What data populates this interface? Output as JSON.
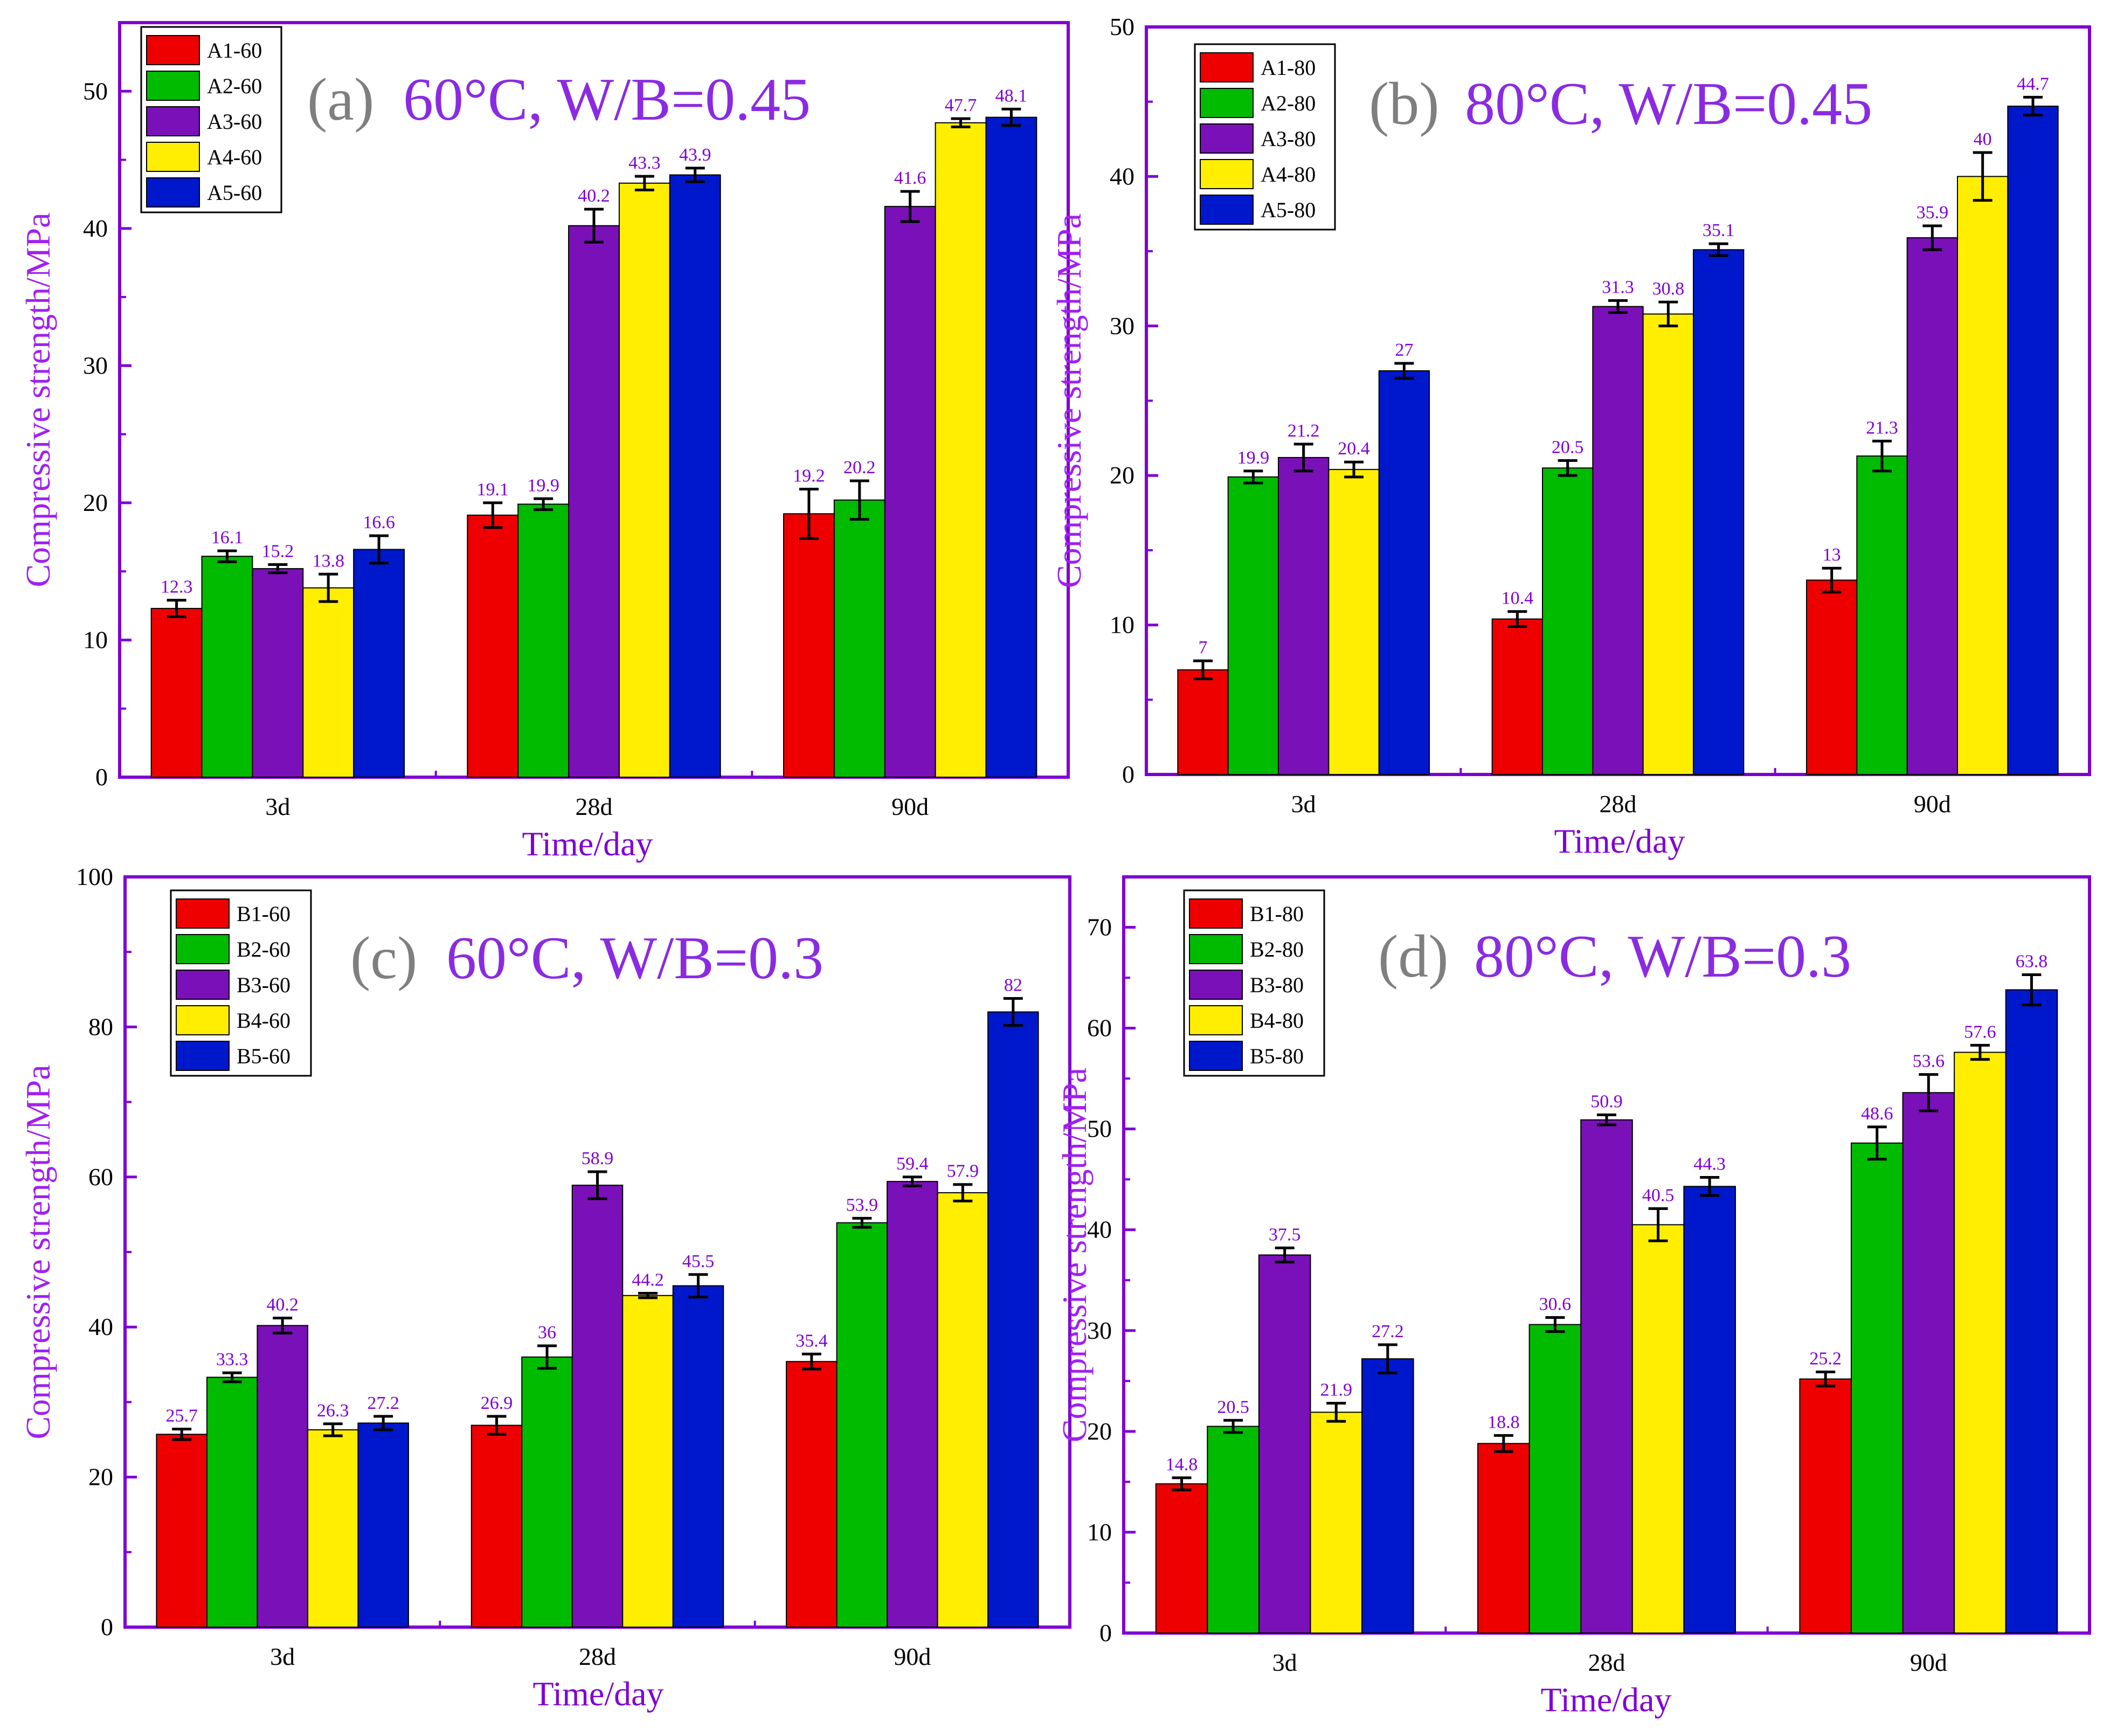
{
  "colors": {
    "frame": "#7f00d4",
    "ylabel": "#a020f0",
    "xlabel": "#7f00d4",
    "bar_label": "#7f00d4",
    "panel_title": "#8a2be2",
    "panel_letter": "#7f7f7f",
    "series": [
      "#ee0000",
      "#00bb00",
      "#7a10b8",
      "#ffee00",
      "#0018cc"
    ]
  },
  "chart_data": [
    {
      "id": "a",
      "type": "bar",
      "title_letter": "(a)",
      "title_text": "60°C, W/B=0.45",
      "categories": [
        "3d",
        "28d",
        "90d"
      ],
      "xlabel": "Time/day",
      "ylabel": "Compressive strength/MPa",
      "ylim": [
        0,
        55
      ],
      "yticks": [
        0,
        10,
        20,
        30,
        40,
        50
      ],
      "legend_position": "top-left",
      "series": [
        {
          "name": "A1-60",
          "values": [
            12.3,
            19.1,
            19.2
          ],
          "errors": [
            0.6,
            0.9,
            1.8
          ]
        },
        {
          "name": "A2-60",
          "values": [
            16.1,
            19.9,
            20.2
          ],
          "errors": [
            0.4,
            0.4,
            1.4
          ]
        },
        {
          "name": "A3-60",
          "values": [
            15.2,
            40.2,
            41.6
          ],
          "errors": [
            0.3,
            1.2,
            1.1
          ]
        },
        {
          "name": "A4-60",
          "values": [
            13.8,
            43.3,
            47.7
          ],
          "errors": [
            1.0,
            0.5,
            0.3
          ]
        },
        {
          "name": "A5-60",
          "values": [
            16.6,
            43.9,
            48.1
          ],
          "errors": [
            1.0,
            0.5,
            0.6
          ]
        }
      ],
      "value_labels": [
        [
          "12.3",
          "19.1",
          "19.2"
        ],
        [
          "16.1",
          "19.9",
          "20.2"
        ],
        [
          "15.2",
          "40.2",
          "41.6"
        ],
        [
          "13.8",
          "43.3",
          "47.7"
        ],
        [
          "16.6",
          "43.9",
          "48.1"
        ]
      ]
    },
    {
      "id": "b",
      "type": "bar",
      "title_letter": "(b)",
      "title_text": "80°C, W/B=0.45",
      "categories": [
        "3d",
        "28d",
        "90d"
      ],
      "xlabel": "Time/day",
      "ylabel": "Compressive strength/MPa",
      "ylim": [
        0,
        50
      ],
      "yticks": [
        0,
        10,
        20,
        30,
        40,
        50
      ],
      "legend_position": "top-left",
      "series": [
        {
          "name": "A1-80",
          "values": [
            7,
            10.4,
            13
          ],
          "errors": [
            0.6,
            0.5,
            0.8
          ]
        },
        {
          "name": "A2-80",
          "values": [
            19.9,
            20.5,
            21.3
          ],
          "errors": [
            0.4,
            0.5,
            1.0
          ]
        },
        {
          "name": "A3-80",
          "values": [
            21.2,
            31.3,
            35.9
          ],
          "errors": [
            0.9,
            0.4,
            0.8
          ]
        },
        {
          "name": "A4-80",
          "values": [
            20.4,
            30.8,
            40
          ],
          "errors": [
            0.5,
            0.8,
            1.6
          ]
        },
        {
          "name": "A5-80",
          "values": [
            27,
            35.1,
            44.7
          ],
          "errors": [
            0.5,
            0.4,
            0.6
          ]
        }
      ],
      "value_labels": [
        [
          "7",
          "10.4",
          "13"
        ],
        [
          "19.9",
          "20.5",
          "21.3"
        ],
        [
          "21.2",
          "31.3",
          "35.9"
        ],
        [
          "20.4",
          "30.8",
          "40"
        ],
        [
          "27",
          "35.1",
          "44.7"
        ]
      ]
    },
    {
      "id": "c",
      "type": "bar",
      "title_letter": "(c)",
      "title_text": "60°C, W/B=0.3",
      "categories": [
        "3d",
        "28d",
        "90d"
      ],
      "xlabel": "Time/day",
      "ylabel": "Compressive strength/MPa",
      "ylim": [
        0,
        100
      ],
      "yticks": [
        0,
        20,
        40,
        60,
        80,
        100
      ],
      "legend_position": "top-left",
      "series": [
        {
          "name": "B1-60",
          "values": [
            25.7,
            26.9,
            35.4
          ],
          "errors": [
            0.7,
            1.2,
            1.0
          ]
        },
        {
          "name": "B2-60",
          "values": [
            33.3,
            36,
            53.9
          ],
          "errors": [
            0.6,
            1.5,
            0.6
          ]
        },
        {
          "name": "B3-60",
          "values": [
            40.2,
            58.9,
            59.4
          ],
          "errors": [
            1.0,
            1.8,
            0.6
          ]
        },
        {
          "name": "B4-60",
          "values": [
            26.3,
            44.2,
            57.9
          ],
          "errors": [
            0.8,
            0.3,
            1.1
          ]
        },
        {
          "name": "B5-60",
          "values": [
            27.2,
            45.5,
            82
          ],
          "errors": [
            0.9,
            1.5,
            1.8
          ]
        }
      ],
      "value_labels": [
        [
          "25.7",
          "26.9",
          "35.4"
        ],
        [
          "33.3",
          "36",
          "53.9"
        ],
        [
          "40.2",
          "58.9",
          "59.4"
        ],
        [
          "26.3",
          "44.2",
          "57.9"
        ],
        [
          "27.2",
          "45.5",
          "82"
        ]
      ]
    },
    {
      "id": "d",
      "type": "bar",
      "title_letter": "(d)",
      "title_text": "80°C, W/B=0.3",
      "categories": [
        "3d",
        "28d",
        "90d"
      ],
      "xlabel": "Time/day",
      "ylabel": "Compressive strength/MPa",
      "ylim": [
        0,
        75
      ],
      "yticks": [
        0,
        10,
        20,
        30,
        40,
        50,
        60,
        70
      ],
      "legend_position": "top-left",
      "series": [
        {
          "name": "B1-80",
          "values": [
            14.8,
            18.8,
            25.2
          ],
          "errors": [
            0.6,
            0.8,
            0.7
          ]
        },
        {
          "name": "B2-80",
          "values": [
            20.5,
            30.6,
            48.6
          ],
          "errors": [
            0.6,
            0.7,
            1.6
          ]
        },
        {
          "name": "B3-80",
          "values": [
            37.5,
            50.9,
            53.6
          ],
          "errors": [
            0.7,
            0.5,
            1.8
          ]
        },
        {
          "name": "B4-80",
          "values": [
            21.9,
            40.5,
            57.6
          ],
          "errors": [
            0.9,
            1.6,
            0.7
          ]
        },
        {
          "name": "B5-80",
          "values": [
            27.2,
            44.3,
            63.8
          ],
          "errors": [
            1.4,
            0.9,
            1.5
          ]
        }
      ],
      "value_labels": [
        [
          "14.8",
          "18.8",
          "25.2"
        ],
        [
          "20.5",
          "30.6",
          "48.6"
        ],
        [
          "37.5",
          "50.9",
          "53.6"
        ],
        [
          "21.9",
          "40.5",
          "57.6"
        ],
        [
          "27.2",
          "44.3",
          "63.8"
        ]
      ]
    }
  ]
}
